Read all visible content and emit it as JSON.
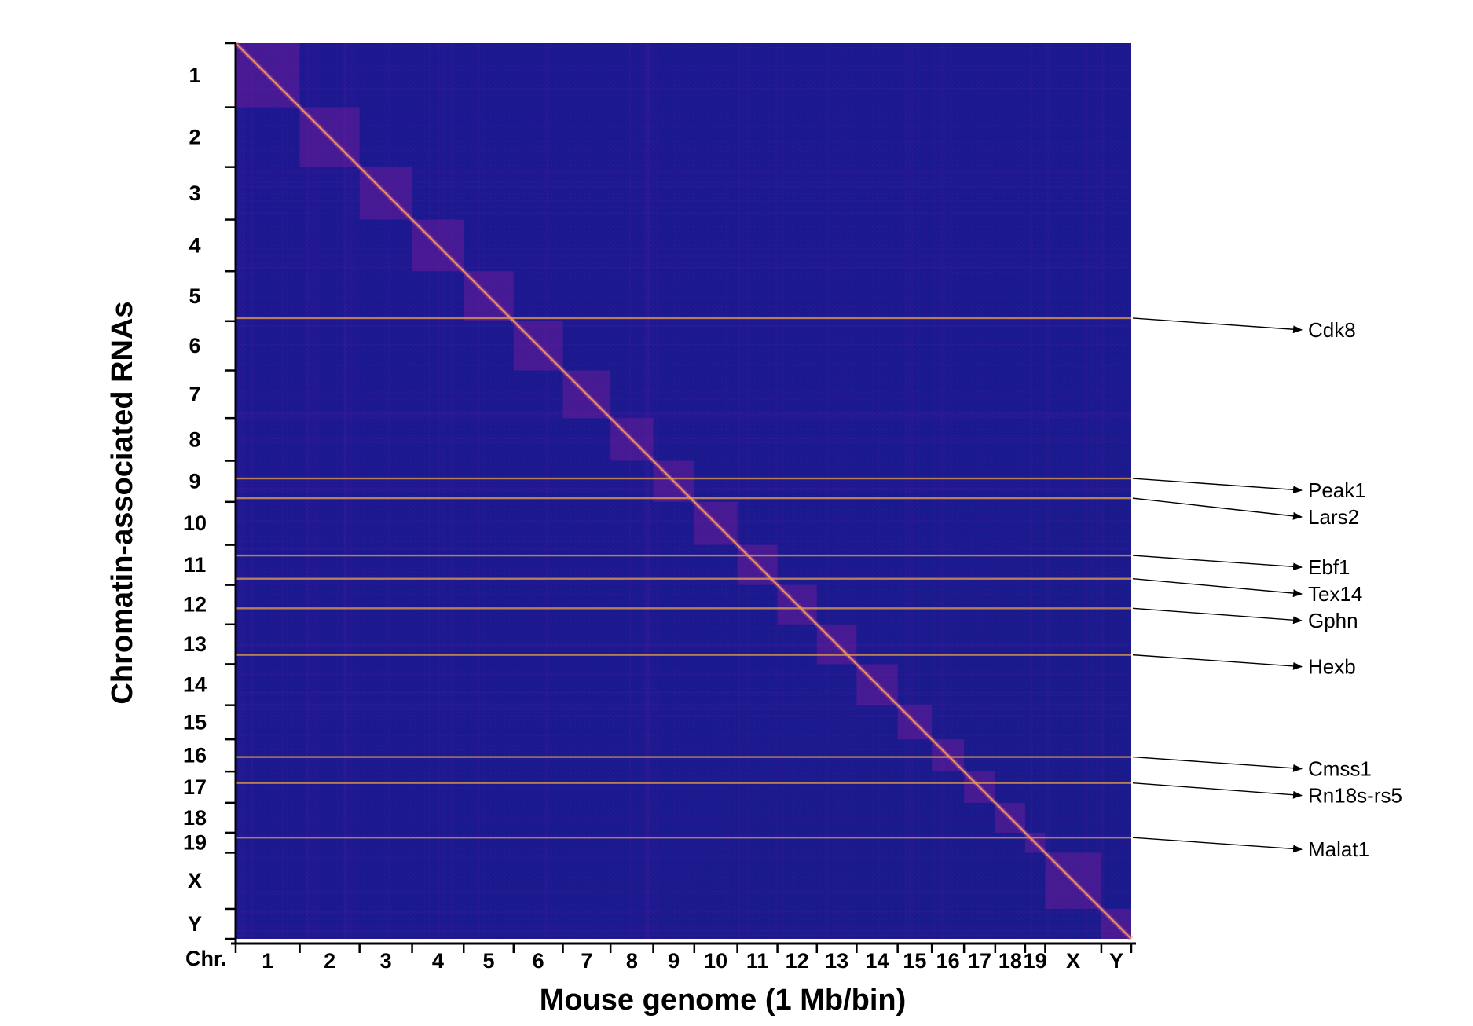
{
  "chart_data": {
    "type": "heatmap",
    "title": "",
    "xlabel": "Mouse genome (1 Mb/bin)",
    "ylabel": "Chromatin-associated RNAs",
    "x_axis_prefix": "Chr.",
    "chromosomes": [
      "1",
      "2",
      "3",
      "4",
      "5",
      "6",
      "7",
      "8",
      "9",
      "10",
      "11",
      "12",
      "13",
      "14",
      "15",
      "16",
      "17",
      "18",
      "19",
      "X",
      "Y"
    ],
    "chromosome_sizes_mb": [
      195,
      182,
      160,
      157,
      152,
      150,
      145,
      130,
      125,
      131,
      122,
      120,
      121,
      125,
      104,
      98,
      95,
      91,
      61,
      171,
      91
    ],
    "colormap": {
      "low": "#1a1a8c",
      "mid": "#8c1a9a",
      "high": "#f7e04a"
    },
    "diagonal_enrichment": true,
    "highlighted_rna_rows": [
      {
        "gene": "Cdk8",
        "chromosome": "5",
        "position_fraction_of_genome": 0.307
      },
      {
        "gene": "Peak1",
        "chromosome": "9",
        "position_fraction_of_genome": 0.486
      },
      {
        "gene": "Lars2",
        "chromosome": "9",
        "position_fraction_of_genome": 0.508
      },
      {
        "gene": "Ebf1",
        "chromosome": "11",
        "position_fraction_of_genome": 0.572
      },
      {
        "gene": "Tex14",
        "chromosome": "11",
        "position_fraction_of_genome": 0.598
      },
      {
        "gene": "Gphn",
        "chromosome": "12",
        "position_fraction_of_genome": 0.631
      },
      {
        "gene": "Hexb",
        "chromosome": "13",
        "position_fraction_of_genome": 0.683
      },
      {
        "gene": "Cmss1",
        "chromosome": "16",
        "position_fraction_of_genome": 0.797
      },
      {
        "gene": "Rn18s-rs5",
        "chromosome": "17",
        "position_fraction_of_genome": 0.826
      },
      {
        "gene": "Malat1",
        "chromosome": "19",
        "position_fraction_of_genome": 0.887
      }
    ]
  }
}
